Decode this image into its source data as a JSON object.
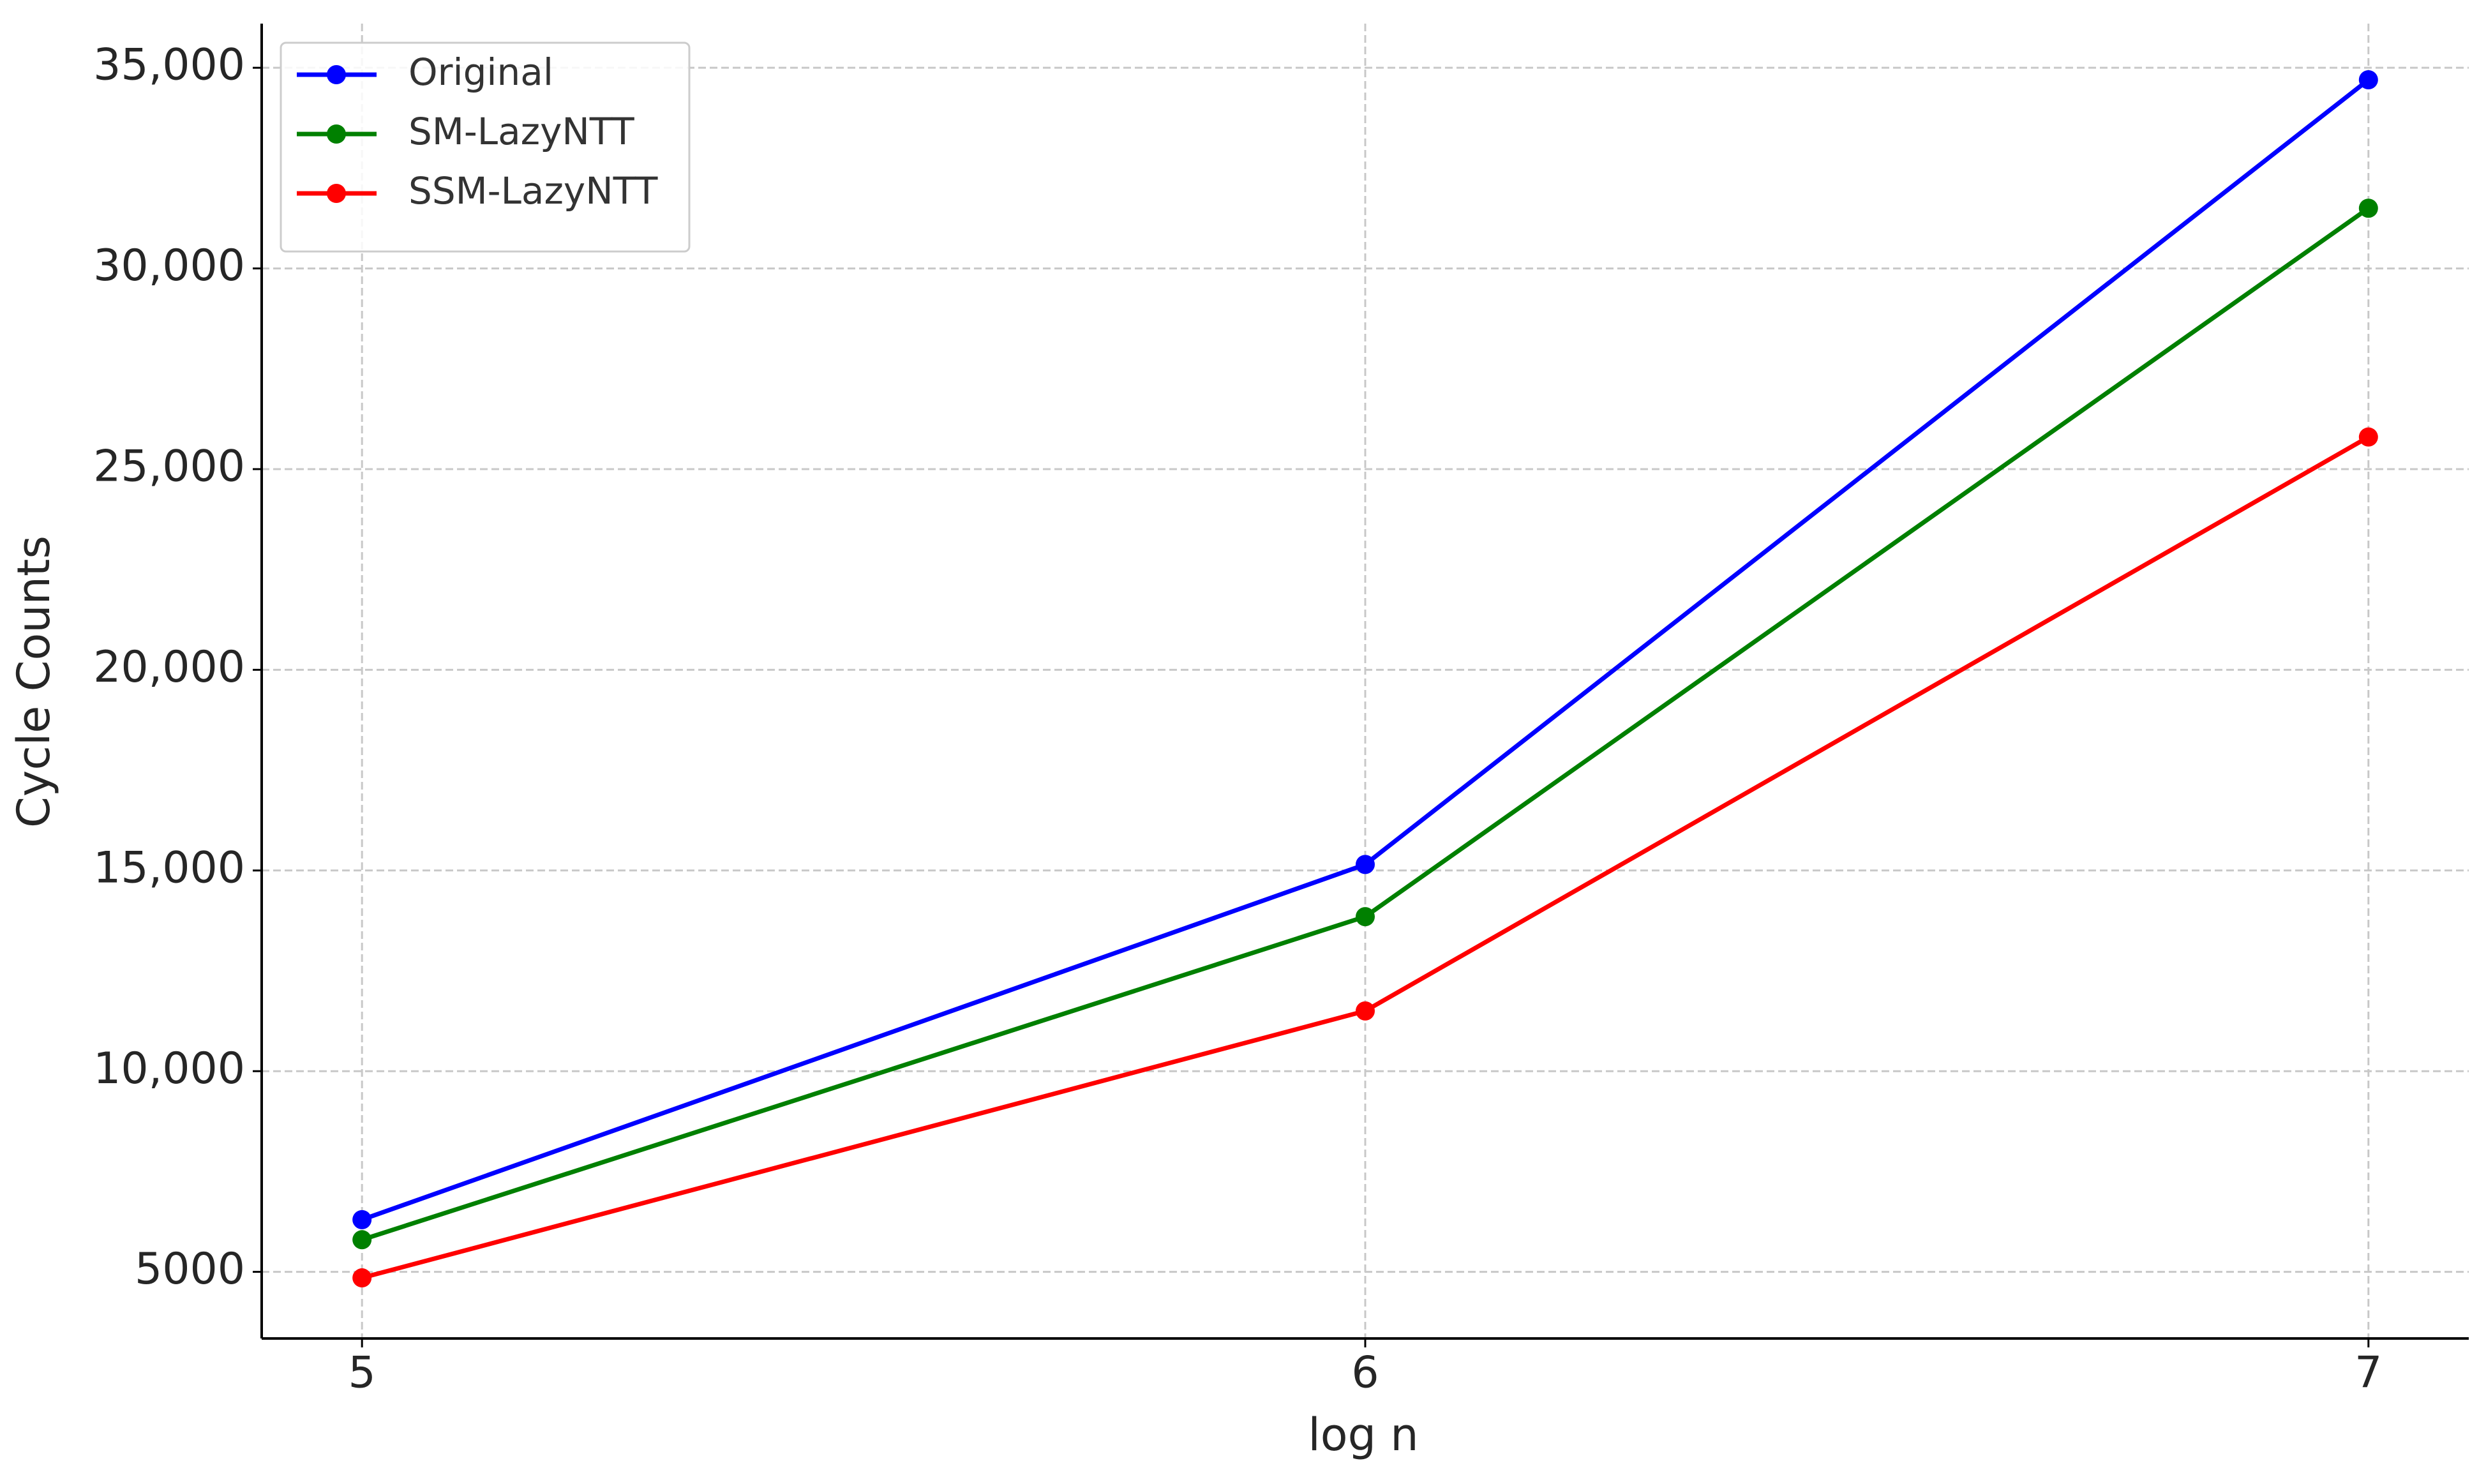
{
  "chart_data": {
    "type": "line",
    "x_label": "log n",
    "y_label": "Cycle Counts",
    "x": [
      5,
      6,
      7
    ],
    "series": [
      {
        "name": "Original",
        "color": "#0000ff",
        "values": [
          6300,
          15150,
          34700
        ]
      },
      {
        "name": "SM-LazyNTT",
        "color": "#008000",
        "values": [
          5800,
          13850,
          31500
        ]
      },
      {
        "name": "SSM-LazyNTT",
        "color": "#ff0000",
        "values": [
          4850,
          11500,
          25800
        ]
      }
    ],
    "xlim": [
      4.9,
      7.1
    ],
    "xticks": [
      5,
      6,
      7
    ],
    "ylim": [
      3340,
      36100
    ],
    "yticks": [
      5000,
      {
        "value": 10000,
        "label": "10,000"
      },
      {
        "value": 15000,
        "label": "15,000"
      },
      {
        "value": 20000,
        "label": "20,000"
      },
      {
        "value": 25000,
        "label": "25,000"
      },
      {
        "value": 30000,
        "label": "30,000"
      },
      {
        "value": 35000,
        "label": "35,000"
      }
    ],
    "grid": true,
    "legend": "upper left"
  }
}
